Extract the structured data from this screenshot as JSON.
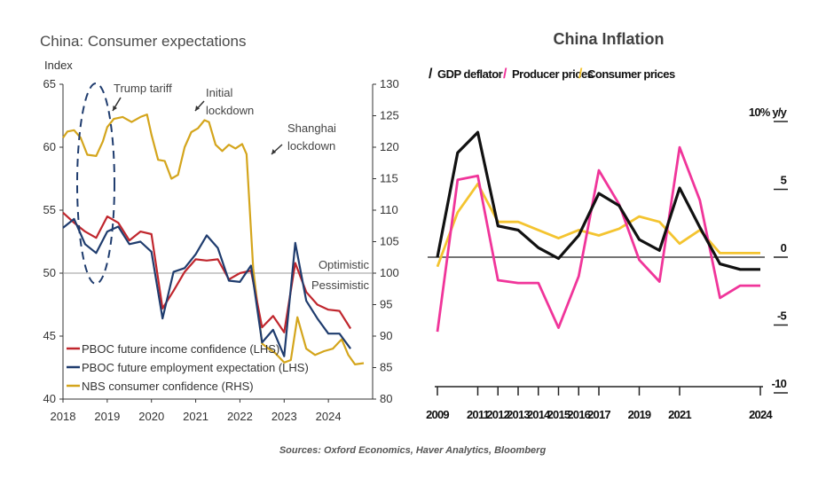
{
  "source": "Sources: Oxford Economics, Haver Analytics, Bloomberg",
  "chart_data": [
    {
      "type": "line",
      "title": "China: Consumer expectations",
      "ylabel": "Index",
      "ylim": [
        40,
        65
      ],
      "y_ticks": [
        "40",
        "45",
        "50",
        "55",
        "60",
        "65"
      ],
      "y2lim": [
        80,
        130
      ],
      "y2_ticks": [
        "80",
        "85",
        "90",
        "95",
        "100",
        "105",
        "110",
        "115",
        "120",
        "125",
        "130"
      ],
      "xlim": [
        2018,
        2025
      ],
      "x_ticks": [
        "2018",
        "2019",
        "2020",
        "2021",
        "2022",
        "2023",
        "2024"
      ],
      "reference_line": 50,
      "annotations": {
        "trump": "Trump tariff",
        "initial1": "Initial",
        "initial2": "lockdown",
        "shanghai1": "Shanghai",
        "shanghai2": "lockdown",
        "optimistic": "Optimistic",
        "pessimistic": "Pessimistic"
      },
      "colors": {
        "income": "#c0262d",
        "employment": "#1f3c6e",
        "nbs": "#d4a51c"
      },
      "series": [
        {
          "name": "PBOC future income confidence (LHS)",
          "axis": "left",
          "x": [
            2018.0,
            2018.25,
            2018.5,
            2018.75,
            2019.0,
            2019.25,
            2019.5,
            2019.75,
            2020.0,
            2020.25,
            2020.5,
            2020.75,
            2021.0,
            2021.25,
            2021.5,
            2021.75,
            2022.0,
            2022.25,
            2022.5,
            2022.75,
            2023.0,
            2023.25,
            2023.5,
            2023.75,
            2024.0,
            2024.25,
            2024.5
          ],
          "values": [
            54.8,
            54.0,
            53.3,
            52.8,
            54.5,
            54.0,
            52.6,
            53.3,
            53.1,
            47.2,
            48.6,
            50.1,
            51.1,
            51.0,
            51.1,
            49.5,
            50.0,
            50.2,
            45.7,
            46.6,
            45.3,
            50.8,
            48.5,
            47.5,
            47.1,
            47.0,
            45.6
          ]
        },
        {
          "name": "PBOC future employment expectation (LHS)",
          "axis": "left",
          "x": [
            2018.0,
            2018.25,
            2018.5,
            2018.75,
            2019.0,
            2019.25,
            2019.5,
            2019.75,
            2020.0,
            2020.25,
            2020.5,
            2020.75,
            2021.0,
            2021.25,
            2021.5,
            2021.75,
            2022.0,
            2022.25,
            2022.5,
            2022.75,
            2023.0,
            2023.25,
            2023.5,
            2023.75,
            2024.0,
            2024.25,
            2024.5
          ],
          "values": [
            53.6,
            54.3,
            52.3,
            51.6,
            53.3,
            53.7,
            52.3,
            52.5,
            51.7,
            46.4,
            50.1,
            50.4,
            51.5,
            53.0,
            52.0,
            49.4,
            49.3,
            50.6,
            44.5,
            45.5,
            43.4,
            52.4,
            47.8,
            46.4,
            45.2,
            45.2,
            44.0
          ]
        },
        {
          "name": "NBS consumer confidence (RHS)",
          "axis": "right",
          "x": [
            2018.0,
            2018.1,
            2018.25,
            2018.4,
            2018.55,
            2018.75,
            2018.9,
            2019.0,
            2019.15,
            2019.35,
            2019.55,
            2019.75,
            2019.9,
            2020.0,
            2020.15,
            2020.3,
            2020.45,
            2020.6,
            2020.75,
            2020.9,
            2021.05,
            2021.2,
            2021.3,
            2021.45,
            2021.6,
            2021.75,
            2021.9,
            2022.05,
            2022.15,
            2022.3,
            2022.5,
            2022.65,
            2022.8,
            2023.0,
            2023.15,
            2023.3,
            2023.5,
            2023.7,
            2023.9,
            2024.1,
            2024.3,
            2024.45,
            2024.6,
            2024.8
          ],
          "values": [
            121.5,
            122.5,
            122.7,
            121.5,
            118.8,
            118.6,
            120.9,
            123.2,
            124.5,
            124.8,
            124.0,
            124.8,
            125.2,
            122.0,
            118.0,
            117.8,
            115.0,
            115.6,
            120.0,
            122.4,
            123.0,
            124.3,
            124.0,
            120.4,
            119.4,
            120.4,
            119.8,
            120.5,
            118.9,
            100.7,
            88.8,
            88.0,
            87.3,
            85.8,
            86.2,
            93.0,
            88.0,
            87.0,
            87.6,
            88.0,
            89.5,
            87.0,
            85.5,
            85.7
          ]
        }
      ]
    },
    {
      "type": "line",
      "title": "China Inflation",
      "ylabel": "10% y/y",
      "ylim": [
        -10,
        10
      ],
      "y_ticks": [
        "-10",
        "-5",
        "0",
        "5",
        "10% y/y"
      ],
      "x_ticks": [
        "2009",
        "2011",
        "2012",
        "2013",
        "2014",
        "2015",
        "2016",
        "2017",
        "2019",
        "2021",
        "2024"
      ],
      "reference_line": 0,
      "colors": {
        "gdp": "#111111",
        "producer": "#f0359a",
        "consumer": "#f4c430"
      },
      "series": [
        {
          "name": "GDP deflator",
          "legend_marker": "/",
          "x": [
            2008.0,
            2009.0,
            2010.0,
            2011.0,
            2012.0,
            2013.0,
            2014.0,
            2015.0,
            2016.0,
            2017.0,
            2018.0,
            2019.0,
            2020.0,
            2021.0,
            2022.0,
            2023.0,
            2024.0
          ],
          "values": [
            0.0,
            7.7,
            9.2,
            2.3,
            2.0,
            0.7,
            -0.1,
            1.6,
            4.7,
            3.8,
            1.3,
            0.5,
            5.1,
            2.2,
            -0.5,
            -0.9,
            -0.9
          ]
        },
        {
          "name": "Producer prices",
          "legend_marker": "/",
          "x": [
            2008.0,
            2009.0,
            2010.0,
            2011.0,
            2012.0,
            2013.0,
            2014.0,
            2015.0,
            2016.0,
            2017.0,
            2018.0,
            2019.0,
            2020.0,
            2021.0,
            2022.0,
            2023.0,
            2024.0
          ],
          "values": [
            -5.5,
            5.7,
            6.0,
            -1.7,
            -1.9,
            -1.9,
            -5.2,
            -1.4,
            6.4,
            3.9,
            -0.2,
            -1.8,
            8.1,
            4.2,
            -3.0,
            -2.1,
            -2.1
          ]
        },
        {
          "name": "Consumer prices",
          "legend_marker": "/",
          "x": [
            2008.0,
            2009.0,
            2010.0,
            2011.0,
            2012.0,
            2013.0,
            2014.0,
            2015.0,
            2016.0,
            2017.0,
            2018.0,
            2019.0,
            2020.0,
            2021.0,
            2022.0,
            2023.0,
            2024.0
          ],
          "values": [
            -0.7,
            3.3,
            5.4,
            2.6,
            2.6,
            2.0,
            1.4,
            2.0,
            1.6,
            2.1,
            3.0,
            2.6,
            1.0,
            2.0,
            0.3,
            0.3,
            0.3
          ]
        }
      ]
    }
  ]
}
